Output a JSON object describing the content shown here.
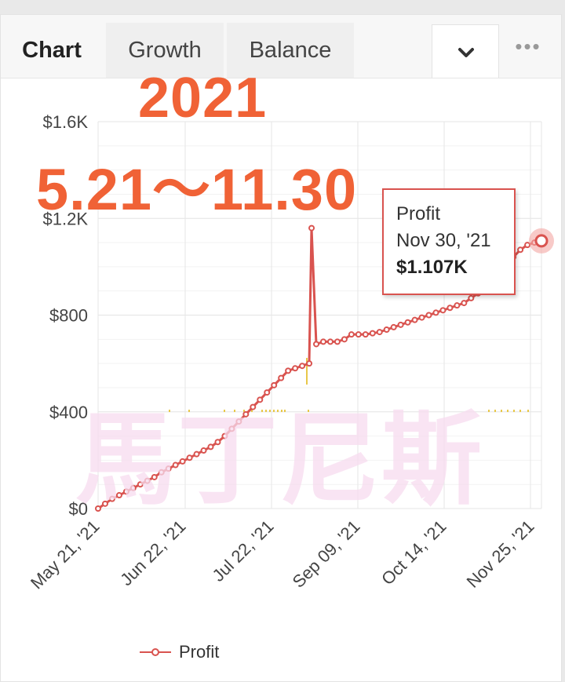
{
  "tabs": [
    {
      "label": "Chart",
      "active": true
    },
    {
      "label": "Growth",
      "active": false
    },
    {
      "label": "Balance",
      "active": false
    }
  ],
  "toolbar": {
    "dropdown_icon": "chevron-down-icon",
    "more_icon": "more-dots-icon",
    "more_glyph": "•••"
  },
  "overlay": {
    "year": "2021",
    "range": "5.21～11.30",
    "watermark": "馬丁尼斯"
  },
  "tooltip": {
    "series": "Profit",
    "date": "Nov 30, '21",
    "value": "$1.107K"
  },
  "legend": {
    "label": "Profit"
  },
  "colors": {
    "series": "#d9534f",
    "volume": "#e8c84a",
    "overlay": "#f06236"
  },
  "chart_data": {
    "type": "line",
    "y_ticks": [
      "$0",
      "$400",
      "$800",
      "$1.2K",
      "$1.6K"
    ],
    "y_tick_values": [
      0,
      400,
      800,
      1200,
      1600
    ],
    "ylim": [
      0,
      1600
    ],
    "x_ticks": [
      "May 21, '21",
      "Jun 22, '21",
      "Jul 22, '21",
      "Sep 09, '21",
      "Oct 14, '21",
      "Nov 25, '21"
    ],
    "series": [
      {
        "name": "Profit",
        "points": [
          [
            0,
            0
          ],
          [
            3,
            20
          ],
          [
            6,
            40
          ],
          [
            9,
            55
          ],
          [
            12,
            70
          ],
          [
            15,
            85
          ],
          [
            18,
            100
          ],
          [
            21,
            115
          ],
          [
            24,
            130
          ],
          [
            27,
            150
          ],
          [
            30,
            165
          ],
          [
            33,
            180
          ],
          [
            36,
            195
          ],
          [
            39,
            210
          ],
          [
            42,
            225
          ],
          [
            45,
            240
          ],
          [
            48,
            255
          ],
          [
            51,
            275
          ],
          [
            54,
            300
          ],
          [
            57,
            330
          ],
          [
            60,
            360
          ],
          [
            63,
            390
          ],
          [
            66,
            420
          ],
          [
            69,
            450
          ],
          [
            72,
            480
          ],
          [
            75,
            510
          ],
          [
            78,
            540
          ],
          [
            81,
            570
          ],
          [
            84,
            580
          ],
          [
            87,
            590
          ],
          [
            90,
            600
          ],
          [
            91,
            1160
          ],
          [
            93,
            680
          ],
          [
            96,
            690
          ],
          [
            99,
            690
          ],
          [
            102,
            690
          ],
          [
            105,
            700
          ],
          [
            108,
            720
          ],
          [
            111,
            720
          ],
          [
            114,
            720
          ],
          [
            117,
            725
          ],
          [
            120,
            730
          ],
          [
            123,
            740
          ],
          [
            126,
            750
          ],
          [
            129,
            760
          ],
          [
            132,
            770
          ],
          [
            135,
            780
          ],
          [
            138,
            790
          ],
          [
            141,
            800
          ],
          [
            144,
            810
          ],
          [
            147,
            820
          ],
          [
            150,
            830
          ],
          [
            153,
            840
          ],
          [
            156,
            850
          ],
          [
            159,
            870
          ],
          [
            162,
            890
          ],
          [
            165,
            910
          ],
          [
            168,
            940
          ],
          [
            171,
            970
          ],
          [
            174,
            1000
          ],
          [
            177,
            1040
          ],
          [
            180,
            1070
          ],
          [
            183,
            1090
          ],
          [
            186,
            1100
          ],
          [
            189,
            1107
          ]
        ]
      }
    ],
    "grid": true,
    "legend_position": "bottom-left"
  }
}
